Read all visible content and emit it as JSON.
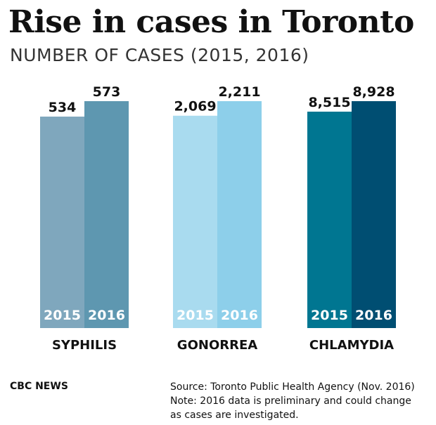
{
  "title": "Rise in cases in Toronto",
  "subtitle": "NUMBER OF CASES (2015, 2016)",
  "chart_data": {
    "type": "bar",
    "title": "Rise in cases in Toronto",
    "subtitle": "NUMBER OF CASES (2015, 2016)",
    "xlabel": "",
    "ylabel": "",
    "categories": [
      "SYPHILIS",
      "GONORREA",
      "CHLAMYDIA"
    ],
    "series_labels": [
      "2015",
      "2016"
    ],
    "groups": [
      {
        "category": "SYPHILIS",
        "ylim": [
          0,
          573
        ],
        "bars": [
          {
            "year": "2015",
            "value": 534,
            "label": "534",
            "color": "#7fa7bd"
          },
          {
            "year": "2016",
            "value": 573,
            "label": "573",
            "color": "#5e97b0"
          }
        ]
      },
      {
        "category": "GONORREA",
        "ylim": [
          0,
          2211
        ],
        "bars": [
          {
            "year": "2015",
            "value": 2069,
            "label": "2,069",
            "color": "#a9dbef"
          },
          {
            "year": "2016",
            "value": 2211,
            "label": "2,211",
            "color": "#8dcfea"
          }
        ]
      },
      {
        "category": "CHLAMYDIA",
        "ylim": [
          0,
          8928
        ],
        "bars": [
          {
            "year": "2015",
            "value": 8515,
            "label": "8,515",
            "color": "#007691"
          },
          {
            "year": "2016",
            "value": 8928,
            "label": "8,928",
            "color": "#004e72"
          }
        ]
      }
    ],
    "grid": false,
    "legend": "none"
  },
  "footer": {
    "brand": "CBC NEWS",
    "source": "Source: Toronto Public Health Agency (Nov. 2016)",
    "note_line1": "Note: 2016 data is preliminary and could change",
    "note_line2": "as cases are investigated."
  }
}
